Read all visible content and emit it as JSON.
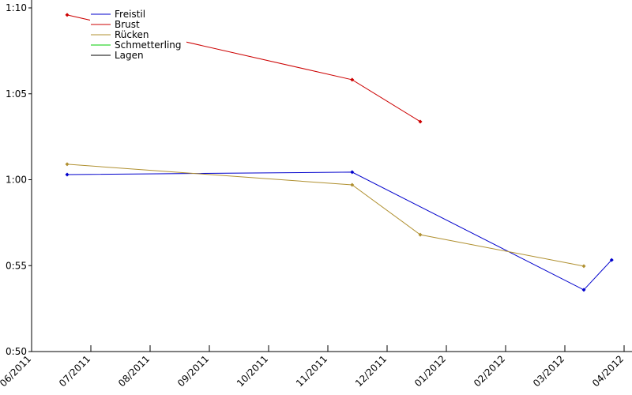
{
  "chart_data": {
    "type": "line",
    "xlim": [
      0,
      10
    ],
    "xticks": [
      {
        "value": 0,
        "label": "06/2011"
      },
      {
        "value": 1,
        "label": "07/2011"
      },
      {
        "value": 2,
        "label": "08/2011"
      },
      {
        "value": 3,
        "label": "09/2011"
      },
      {
        "value": 4,
        "label": "10/2011"
      },
      {
        "value": 5,
        "label": "11/2011"
      },
      {
        "value": 6,
        "label": "12/2011"
      },
      {
        "value": 7,
        "label": "01/2012"
      },
      {
        "value": 8,
        "label": "02/2012"
      },
      {
        "value": 9,
        "label": "03/2012"
      },
      {
        "value": 10,
        "label": "04/2012"
      }
    ],
    "ylim": [
      50,
      70
    ],
    "yticks": [
      {
        "value": 50,
        "label": "0:50"
      },
      {
        "value": 55,
        "label": "0:55"
      },
      {
        "value": 60,
        "label": "1:00"
      },
      {
        "value": 65,
        "label": "1:05"
      },
      {
        "value": 70,
        "label": "1:10"
      }
    ],
    "series": [
      {
        "name": "Freistil",
        "color": "#0000cc",
        "x": [
          0.6,
          5.41,
          9.32,
          9.79
        ],
        "values": [
          60.3,
          60.44,
          53.59,
          55.33
        ]
      },
      {
        "name": "Brust",
        "color": "#cc0000",
        "x": [
          0.6,
          5.41,
          6.56
        ],
        "values": [
          69.59,
          65.82,
          63.38
        ]
      },
      {
        "name": "Rücken",
        "color": "#b09030",
        "x": [
          0.6,
          5.41,
          6.56,
          9.32
        ],
        "values": [
          60.9,
          59.7,
          56.8,
          54.97
        ]
      },
      {
        "name": "Schmetterling",
        "color": "#00cc00",
        "x": [],
        "values": []
      },
      {
        "name": "Lagen",
        "color": "#000000",
        "x": [],
        "values": []
      }
    ]
  }
}
